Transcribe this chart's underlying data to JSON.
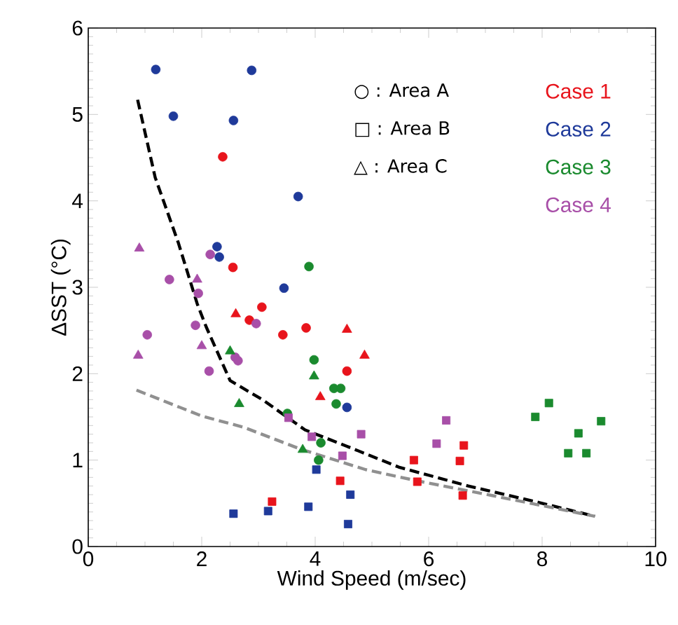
{
  "chart_data": {
    "type": "scatter",
    "xlabel": "Wind Speed (m/sec)",
    "ylabel": "ΔSST (°C)",
    "xlim": [
      0,
      10
    ],
    "ylim": [
      0,
      6
    ],
    "xticks": [
      0,
      2,
      4,
      6,
      8,
      10
    ],
    "yticks": [
      0,
      1,
      2,
      3,
      4,
      5,
      6
    ],
    "grid": false,
    "legend": "top right",
    "annotations": [
      "○ : Area A",
      "□ : Area B",
      "△ : Area C"
    ],
    "series": [
      {
        "name": "Case 1",
        "color": "#e8141c",
        "marker": "circle",
        "x": [
          2.37,
          2.55,
          3.06,
          2.84,
          3.43,
          3.84,
          4.56
        ],
        "values": [
          4.51,
          3.23,
          2.77,
          2.62,
          2.45,
          2.53,
          2.03
        ]
      },
      {
        "name": "Case 2",
        "color": "#1f3a9a",
        "marker": "circle",
        "x": [
          1.19,
          2.88,
          1.5,
          2.56,
          3.7,
          2.27,
          2.31,
          3.45,
          4.56
        ],
        "values": [
          5.52,
          5.51,
          4.98,
          4.93,
          4.05,
          3.47,
          3.35,
          2.99,
          1.61
        ]
      },
      {
        "name": "Case 3",
        "color": "#1a8a2e",
        "marker": "circle",
        "x": [
          3.89,
          3.98,
          4.33,
          4.45,
          4.37,
          3.51,
          4.1,
          4.06
        ],
        "values": [
          3.24,
          2.16,
          1.83,
          1.83,
          1.65,
          1.54,
          1.2,
          1.0
        ]
      },
      {
        "name": "Case 4",
        "color": "#a84fa8",
        "marker": "circle",
        "x": [
          2.15,
          1.43,
          1.94,
          2.96,
          1.04,
          1.89,
          2.13,
          2.59,
          2.64
        ],
        "values": [
          3.38,
          3.09,
          2.93,
          2.58,
          2.45,
          2.56,
          2.03,
          2.19,
          2.15
        ]
      },
      {
        "color": "#e8141c",
        "marker": "square",
        "x": [
          3.24,
          4.44,
          5.74,
          5.8,
          6.62,
          6.55,
          6.6
        ],
        "values": [
          0.52,
          0.76,
          1.0,
          0.75,
          1.17,
          0.99,
          0.59
        ]
      },
      {
        "color": "#1f3a9a",
        "marker": "square",
        "x": [
          4.02,
          4.62,
          2.56,
          3.17,
          3.88,
          4.58
        ],
        "values": [
          0.89,
          0.6,
          0.38,
          0.41,
          0.46,
          0.26
        ]
      },
      {
        "color": "#1a8a2e",
        "marker": "square",
        "x": [
          7.88,
          8.12,
          8.64,
          8.46,
          8.78,
          9.04
        ],
        "values": [
          1.5,
          1.66,
          1.31,
          1.08,
          1.08,
          1.45
        ]
      },
      {
        "color": "#a84fa8",
        "marker": "square",
        "x": [
          3.53,
          3.94,
          4.48,
          4.81,
          6.31,
          6.14
        ],
        "values": [
          1.49,
          1.27,
          1.05,
          1.3,
          1.46,
          1.19
        ]
      },
      {
        "color": "#e8141c",
        "marker": "triangle",
        "x": [
          2.6,
          4.56,
          4.87,
          4.09
        ],
        "values": [
          2.69,
          2.51,
          2.21,
          1.73
        ]
      },
      {
        "color": "#1a8a2e",
        "marker": "triangle",
        "x": [
          2.5,
          3.98,
          2.66,
          3.78
        ],
        "values": [
          2.26,
          1.97,
          1.65,
          1.12
        ]
      },
      {
        "color": "#a84fa8",
        "marker": "triangle",
        "x": [
          0.9,
          1.92,
          0.88,
          2.0
        ],
        "values": [
          3.45,
          3.09,
          2.21,
          2.32
        ]
      },
      {
        "type": "line",
        "color": "#000000",
        "marker": "none",
        "line_style": "dashed",
        "x": [
          0.87,
          1.18,
          1.59,
          1.92,
          2.08,
          2.5,
          3.07,
          3.82,
          4.56,
          5.47,
          6.7,
          7.94,
          8.93
        ],
        "values": [
          5.17,
          4.27,
          3.51,
          2.81,
          2.54,
          1.92,
          1.7,
          1.35,
          1.16,
          0.92,
          0.7,
          0.51,
          0.35
        ]
      },
      {
        "type": "line",
        "color": "#909090",
        "marker": "none",
        "line_style": "dashed",
        "x": [
          0.85,
          2.0,
          2.74,
          3.73,
          4.89,
          5.8,
          7.12,
          8.93
        ],
        "values": [
          1.81,
          1.51,
          1.38,
          1.13,
          0.89,
          0.76,
          0.59,
          0.35
        ]
      }
    ]
  }
}
